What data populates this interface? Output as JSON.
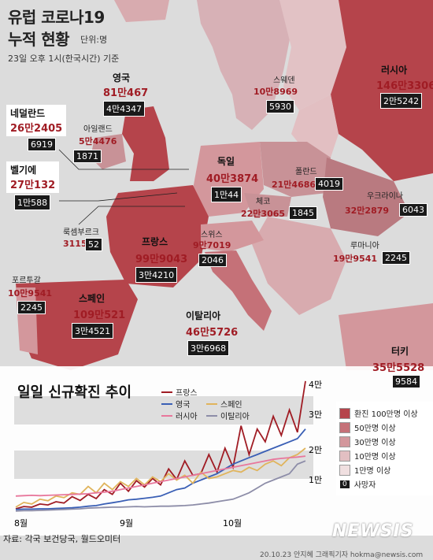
{
  "title_line1": "유럽 코로나19",
  "title_line2": "누적 현황",
  "unit": "단위:명",
  "date": "23일 오후 1시(한국시간) 기준",
  "countries": {
    "russia": {
      "name": "러시아",
      "cases": "146만3306",
      "deaths": "2만5242"
    },
    "uk": {
      "name": "영국",
      "cases": "81만467",
      "deaths": "4만4347"
    },
    "sweden": {
      "name": "스웨덴",
      "cases": "10만8969",
      "deaths": "5930"
    },
    "netherlands": {
      "name": "네덜란드",
      "cases": "26만2405",
      "deaths": "6919"
    },
    "ireland": {
      "name": "아일랜드",
      "cases": "5만4476",
      "deaths": "1871"
    },
    "germany": {
      "name": "독일",
      "cases": "40만3874",
      "deaths": "1만44"
    },
    "poland": {
      "name": "폴란드",
      "cases": "21만4686",
      "deaths": "4019"
    },
    "belgium": {
      "name": "벨기에",
      "cases": "27만132",
      "deaths": "1만588"
    },
    "czech": {
      "name": "체코",
      "cases": "22만3065",
      "deaths": "1845"
    },
    "ukraine": {
      "name": "우크라이나",
      "cases": "32만2879",
      "deaths": "6043"
    },
    "luxembourg": {
      "name": "룩셈부르크",
      "cases": "3115",
      "deaths": "52"
    },
    "switzerland": {
      "name": "스위스",
      "cases": "9만7019",
      "deaths": "2046"
    },
    "romania": {
      "name": "루마니아",
      "cases": "19만9541",
      "deaths": "2245"
    },
    "france": {
      "name": "프랑스",
      "cases": "99만9043",
      "deaths": "3만4210"
    },
    "portugal": {
      "name": "포르투갈",
      "cases": "10만9541",
      "deaths": "2245"
    },
    "spain": {
      "name": "스페인",
      "cases": "109만521",
      "deaths": "3만4521"
    },
    "italy": {
      "name": "이탈리아",
      "cases": "46만5726",
      "deaths": "3만6968"
    },
    "turkey": {
      "name": "터키",
      "cases": "35만5528",
      "deaths": "9584"
    }
  },
  "shade_legend": {
    "items": [
      {
        "label": "환진 100만명 이상",
        "color": "#b5444b"
      },
      {
        "label": "50만명 이상",
        "color": "#c57178"
      },
      {
        "label": "30만명 이상",
        "color": "#d3979c"
      },
      {
        "label": "10만명 이상",
        "color": "#e2bfc2"
      },
      {
        "label": "1만명 이상",
        "color": "#f0dfe0"
      }
    ],
    "death_label": "사망자",
    "death_marker": "0"
  },
  "chart_data": {
    "type": "line",
    "title": "일일 신규확진 추이",
    "x_ticks": [
      "8월",
      "9월",
      "10월"
    ],
    "y_ticks": [
      "1만",
      "2만",
      "3만",
      "4만"
    ],
    "ylim": [
      0,
      40000
    ],
    "series": [
      {
        "name": "프랑스",
        "color": "#a01c24",
        "values": [
          1000,
          1700,
          1500,
          2500,
          2200,
          3200,
          2800,
          4800,
          3600,
          5500,
          4200,
          7000,
          5500,
          9000,
          6500,
          9800,
          7800,
          10500,
          8500,
          13500,
          10200,
          16000,
          11500,
          12000,
          18000,
          12500,
          20000,
          14000,
          27000,
          18000,
          26000,
          22000,
          30000,
          24000,
          32000,
          25000,
          41000
        ]
      },
      {
        "name": "영국",
        "color": "#3a5fb5",
        "values": [
          800,
          900,
          900,
          1000,
          1000,
          1100,
          1200,
          1300,
          1500,
          1800,
          2000,
          2500,
          2900,
          3300,
          3800,
          4000,
          4300,
          4600,
          5000,
          6000,
          7000,
          7500,
          9000,
          10000,
          11000,
          12000,
          13500,
          15000,
          16000,
          17000,
          18000,
          19000,
          20000,
          21000,
          22000,
          23000,
          26000
        ]
      },
      {
        "name": "스페인",
        "color": "#e0b45c",
        "values": [
          1500,
          3000,
          2500,
          4000,
          3500,
          5000,
          4500,
          6000,
          5500,
          8000,
          6000,
          9000,
          7000,
          9500,
          8000,
          10500,
          8500,
          11000,
          9500,
          12000,
          10000,
          11500,
          9000,
          12500,
          10500,
          11000,
          12000,
          13000,
          12500,
          14000,
          13000,
          15000,
          16000,
          14500,
          17000,
          18000,
          20000
        ]
      },
      {
        "name": "러시아",
        "color": "#e8779c",
        "values": [
          5000,
          5100,
          5200,
          5100,
          5200,
          5300,
          5400,
          5500,
          5600,
          5700,
          6000,
          6200,
          6500,
          7000,
          7500,
          8000,
          8500,
          9000,
          9500,
          10000,
          10500,
          11000,
          11500,
          12000,
          12500,
          13000,
          13500,
          14000,
          14500,
          15000,
          15500,
          16000,
          16500,
          16800,
          17000,
          17200,
          17500
        ]
      },
      {
        "name": "이탈리아",
        "color": "#8d8da8",
        "values": [
          300,
          400,
          400,
          500,
          600,
          700,
          800,
          900,
          1000,
          1200,
          1300,
          1400,
          1500,
          1500,
          1600,
          1700,
          1600,
          1700,
          1800,
          1800,
          1900,
          2000,
          2200,
          2500,
          2800,
          3200,
          3600,
          4000,
          5000,
          6000,
          7500,
          9000,
          10000,
          11000,
          12000,
          15000,
          16000
        ]
      }
    ]
  },
  "source": "자료: 각국 보건당국, 월드오미터",
  "credit": "20.10.23 안지혜 그래픽기자 hokma@newsis.com",
  "brand": "NEWSIS"
}
